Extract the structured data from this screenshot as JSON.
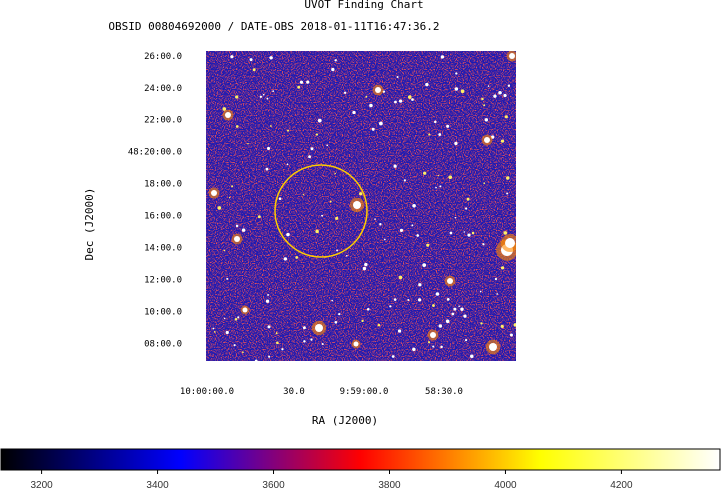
{
  "chart_data": {
    "type": "heatmap",
    "title": "UVOT Finding Chart",
    "subtitle": "OBSID 00804692000 / DATE-OBS 2018-01-11T16:47:36.2",
    "xlabel": "RA (J2000)",
    "ylabel": "Dec (J2000)",
    "x_ticks": [
      "10:00:00.0",
      "30.0",
      "9:59:00.0",
      "58:30.0"
    ],
    "y_ticks": [
      "26:00.0",
      "24:00.0",
      "22:00.0",
      "48:20:00.0",
      "18:00.0",
      "16:00.0",
      "14:00.0",
      "12:00.0",
      "10:00.0",
      "08:00.0"
    ],
    "y_tick_minutes": [
      26,
      24,
      22,
      20,
      18,
      16,
      14,
      12,
      10,
      8
    ],
    "y_range_minutes": [
      6.9,
      26.3
    ],
    "colorbar": {
      "ticks": [
        3200,
        3400,
        3600,
        3800,
        4000,
        4200
      ],
      "range": [
        3130,
        4370
      ],
      "colormap": "heat",
      "colors": [
        "#000000",
        "#0000ff",
        "#ff0000",
        "#ffff00",
        "#ffffff"
      ]
    },
    "marker": {
      "shape": "circle",
      "color": "#ffcc00"
    },
    "image_colors": {
      "background": "#1a1ab4",
      "noise": "#cc1a1a",
      "stars": "#ffffff"
    },
    "grid": false
  }
}
